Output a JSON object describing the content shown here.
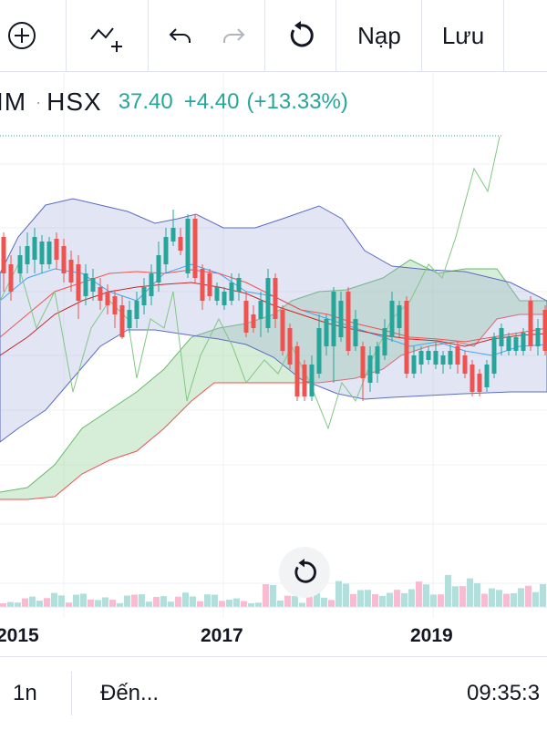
{
  "toolbar": {
    "add_icon": "plus-circle-icon",
    "indicator_icon": "indicator-plus-icon",
    "undo_icon": "undo-icon",
    "redo_icon": "redo-icon",
    "reset_icon": "reset-icon",
    "load_label": "Nạp",
    "save_label": "Lưu"
  },
  "header": {
    "symbol": "IM",
    "exchange": "HSX",
    "price": "37.40",
    "change": "+4.40",
    "change_pct": "(+13.33%)"
  },
  "colors": {
    "up": "#26a69a",
    "down": "#ef5350",
    "bands_fill": "#9fa8da",
    "cloud_fill": "#a5d6a7"
  },
  "x_axis": {
    "labels": [
      "2015",
      "2017",
      "2019"
    ]
  },
  "bottom": {
    "interval": "1n",
    "goto_label": "Đến...",
    "time": "09:35:3"
  }
}
